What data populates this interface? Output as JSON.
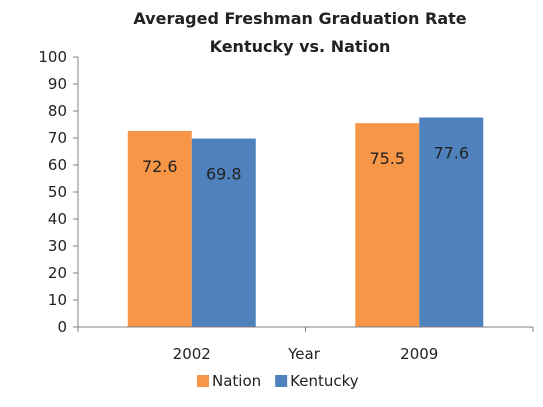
{
  "chart_data": {
    "type": "bar",
    "title": "Averaged Freshman Graduation Rate",
    "subtitle": "Kentucky vs. Nation",
    "xlabel": "Year",
    "ylabel": "",
    "categories": [
      "2002",
      "2009"
    ],
    "series": [
      {
        "name": "Nation",
        "values": [
          72.6,
          75.5
        ],
        "color": "#F79646"
      },
      {
        "name": "Kentucky",
        "values": [
          69.8,
          77.6
        ],
        "color": "#4F81BD"
      }
    ],
    "ylim": [
      0,
      100
    ],
    "yticks": [
      "0",
      "10",
      "20",
      "30",
      "40",
      "50",
      "60",
      "70",
      "80",
      "90",
      "100"
    ],
    "grid": false,
    "legend_position": "bottom",
    "data_labels": [
      "72.6",
      "75.5",
      "69.8",
      "77.6"
    ]
  }
}
